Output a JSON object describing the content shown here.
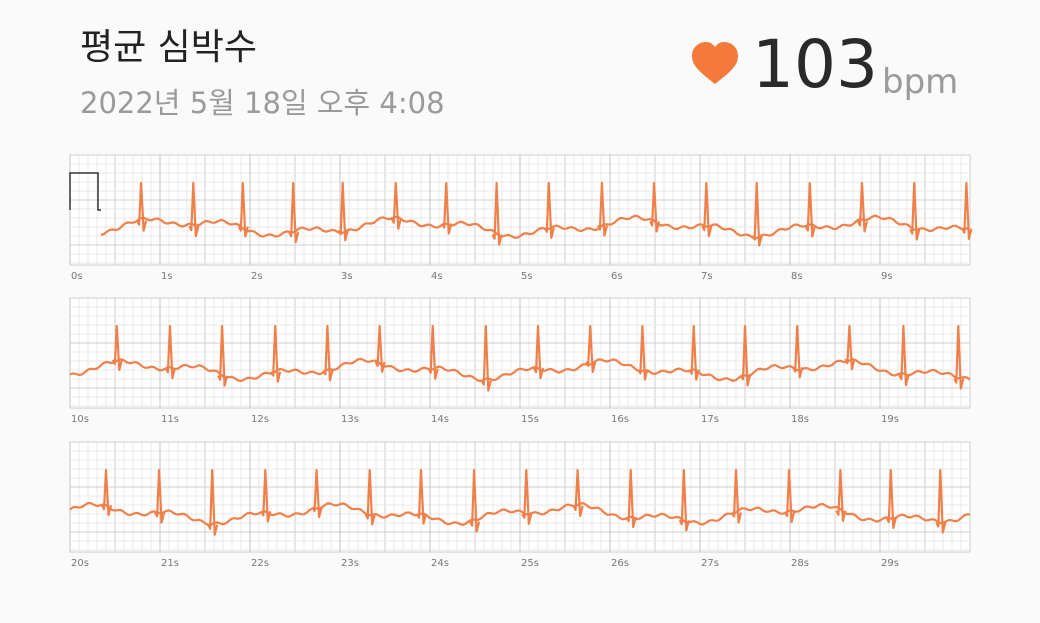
{
  "header": {
    "title": "평균 심박수",
    "timestamp": "2022년 5월 18일 오후 4:08"
  },
  "heart_rate": {
    "value": "103",
    "unit": "bpm"
  },
  "ecg": {
    "strips": [
      {
        "ticks": [
          {
            "value": 0,
            "label": "0s"
          },
          {
            "value": 1,
            "label": "1s"
          },
          {
            "value": 2,
            "label": "2s"
          },
          {
            "value": 3,
            "label": "3s"
          },
          {
            "value": 4,
            "label": "4s"
          },
          {
            "value": 5,
            "label": "5s"
          },
          {
            "value": 6,
            "label": "6s"
          },
          {
            "value": 7,
            "label": "7s"
          },
          {
            "value": 8,
            "label": "8s"
          },
          {
            "value": 9,
            "label": "9s"
          }
        ],
        "beats": [
          0.79,
          1.37,
          1.92,
          2.48,
          3.03,
          3.62,
          4.18,
          4.74,
          5.32,
          5.91,
          6.49,
          7.07,
          7.63,
          8.22,
          8.8,
          9.38,
          9.96
        ]
      },
      {
        "ticks": [
          {
            "value": 10,
            "label": "10s"
          },
          {
            "value": 11,
            "label": "11s"
          },
          {
            "value": 12,
            "label": "12s"
          },
          {
            "value": 13,
            "label": "13s"
          },
          {
            "value": 14,
            "label": "14s"
          },
          {
            "value": 15,
            "label": "15s"
          },
          {
            "value": 16,
            "label": "16s"
          },
          {
            "value": 17,
            "label": "17s"
          },
          {
            "value": 18,
            "label": "18s"
          },
          {
            "value": 19,
            "label": "19s"
          }
        ],
        "beats": [
          10.52,
          11.11,
          11.69,
          12.28,
          12.86,
          13.44,
          14.03,
          14.62,
          15.2,
          15.78,
          16.36,
          16.93,
          17.5,
          18.08,
          18.66,
          19.26,
          19.87
        ]
      },
      {
        "ticks": [
          {
            "value": 20,
            "label": "20s"
          },
          {
            "value": 21,
            "label": "21s"
          },
          {
            "value": 22,
            "label": "22s"
          },
          {
            "value": 23,
            "label": "23s"
          },
          {
            "value": 24,
            "label": "24s"
          },
          {
            "value": 25,
            "label": "25s"
          },
          {
            "value": 26,
            "label": "26s"
          },
          {
            "value": 27,
            "label": "27s"
          },
          {
            "value": 28,
            "label": "28s"
          },
          {
            "value": 29,
            "label": "29s"
          }
        ],
        "beats": [
          20.4,
          20.99,
          21.58,
          22.17,
          22.74,
          23.33,
          23.9,
          24.49,
          25.07,
          25.64,
          26.23,
          26.82,
          27.4,
          27.99,
          28.56,
          29.12,
          29.67
        ]
      }
    ]
  }
}
